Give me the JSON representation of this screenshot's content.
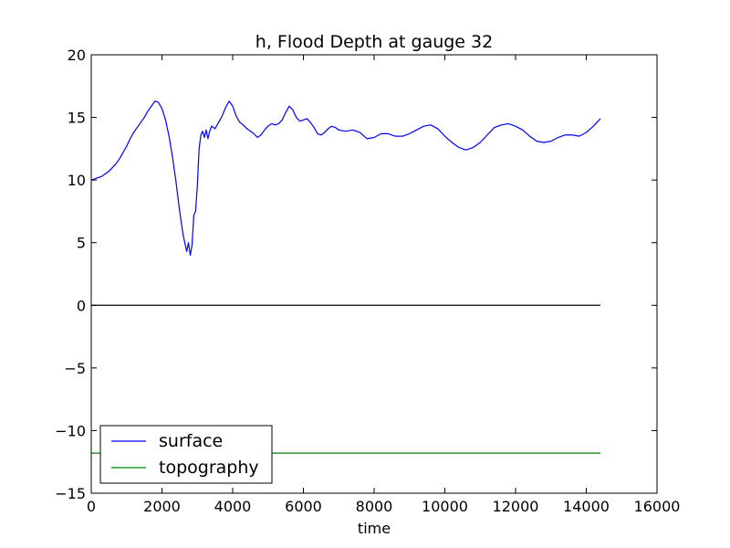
{
  "chart_data": {
    "type": "line",
    "title": "h, Flood Depth at gauge 32",
    "xlabel": "time",
    "ylabel": "",
    "xlim": [
      0,
      16000
    ],
    "ylim": [
      -15,
      20
    ],
    "xticks": [
      0,
      2000,
      4000,
      6000,
      8000,
      10000,
      12000,
      14000,
      16000
    ],
    "xtick_labels": [
      "0",
      "2000",
      "4000",
      "6000",
      "8000",
      "10000",
      "12000",
      "14000",
      "16000"
    ],
    "yticks": [
      -15,
      -10,
      -5,
      0,
      5,
      10,
      15,
      20
    ],
    "ytick_labels": [
      "−15",
      "−10",
      "−5",
      "0",
      "5",
      "10",
      "15",
      "20"
    ],
    "grid": false,
    "legend_position": "lower-left",
    "series": [
      {
        "name": "surface",
        "color": "#0000ff",
        "x": [
          0,
          100,
          200,
          300,
          400,
          500,
          600,
          700,
          800,
          900,
          1000,
          1100,
          1200,
          1300,
          1400,
          1500,
          1600,
          1700,
          1800,
          1900,
          2000,
          2100,
          2200,
          2300,
          2400,
          2500,
          2600,
          2700,
          2750,
          2800,
          2850,
          2900,
          2950,
          3000,
          3050,
          3100,
          3150,
          3200,
          3250,
          3300,
          3350,
          3400,
          3500,
          3600,
          3700,
          3800,
          3900,
          4000,
          4100,
          4200,
          4300,
          4400,
          4500,
          4600,
          4700,
          4800,
          4900,
          5000,
          5100,
          5200,
          5300,
          5400,
          5500,
          5600,
          5700,
          5800,
          5900,
          6000,
          6100,
          6200,
          6300,
          6400,
          6500,
          6600,
          6700,
          6800,
          6900,
          7000,
          7200,
          7400,
          7600,
          7800,
          8000,
          8200,
          8400,
          8600,
          8800,
          9000,
          9200,
          9400,
          9600,
          9800,
          10000,
          10200,
          10400,
          10600,
          10800,
          11000,
          11200,
          11400,
          11600,
          11800,
          12000,
          12200,
          12400,
          12600,
          12800,
          13000,
          13200,
          13400,
          13600,
          13800,
          14000,
          14200,
          14400
        ],
        "values": [
          10.0,
          10.1,
          10.2,
          10.3,
          10.5,
          10.7,
          11.0,
          11.3,
          11.7,
          12.2,
          12.7,
          13.3,
          13.8,
          14.2,
          14.6,
          15.0,
          15.5,
          15.9,
          16.3,
          16.2,
          15.7,
          14.8,
          13.5,
          11.8,
          9.8,
          7.5,
          5.6,
          4.3,
          5.0,
          4.0,
          4.8,
          7.2,
          7.5,
          9.5,
          12.5,
          13.6,
          13.9,
          13.4,
          14.0,
          13.3,
          13.9,
          14.3,
          14.1,
          14.6,
          15.1,
          15.8,
          16.3,
          15.9,
          15.1,
          14.6,
          14.4,
          14.1,
          13.9,
          13.7,
          13.4,
          13.6,
          14.0,
          14.3,
          14.5,
          14.4,
          14.5,
          14.8,
          15.4,
          15.9,
          15.6,
          15.0,
          14.7,
          14.8,
          14.9,
          14.6,
          14.2,
          13.7,
          13.6,
          13.8,
          14.1,
          14.3,
          14.2,
          14.0,
          13.9,
          14.0,
          13.8,
          13.3,
          13.4,
          13.7,
          13.7,
          13.5,
          13.5,
          13.7,
          14.0,
          14.3,
          14.4,
          14.1,
          13.5,
          13.0,
          12.6,
          12.4,
          12.6,
          13.0,
          13.6,
          14.2,
          14.4,
          14.5,
          14.3,
          14.0,
          13.5,
          13.1,
          13.0,
          13.1,
          13.4,
          13.6,
          13.6,
          13.5,
          13.8,
          14.3,
          14.9
        ]
      },
      {
        "name": "topography",
        "color": "#008000",
        "x": [
          0,
          14400
        ],
        "values": [
          -11.8,
          -11.8
        ]
      }
    ],
    "reference_lines": [
      {
        "y": 0,
        "color": "#000000",
        "x_from": 0,
        "x_to": 14400
      }
    ]
  }
}
